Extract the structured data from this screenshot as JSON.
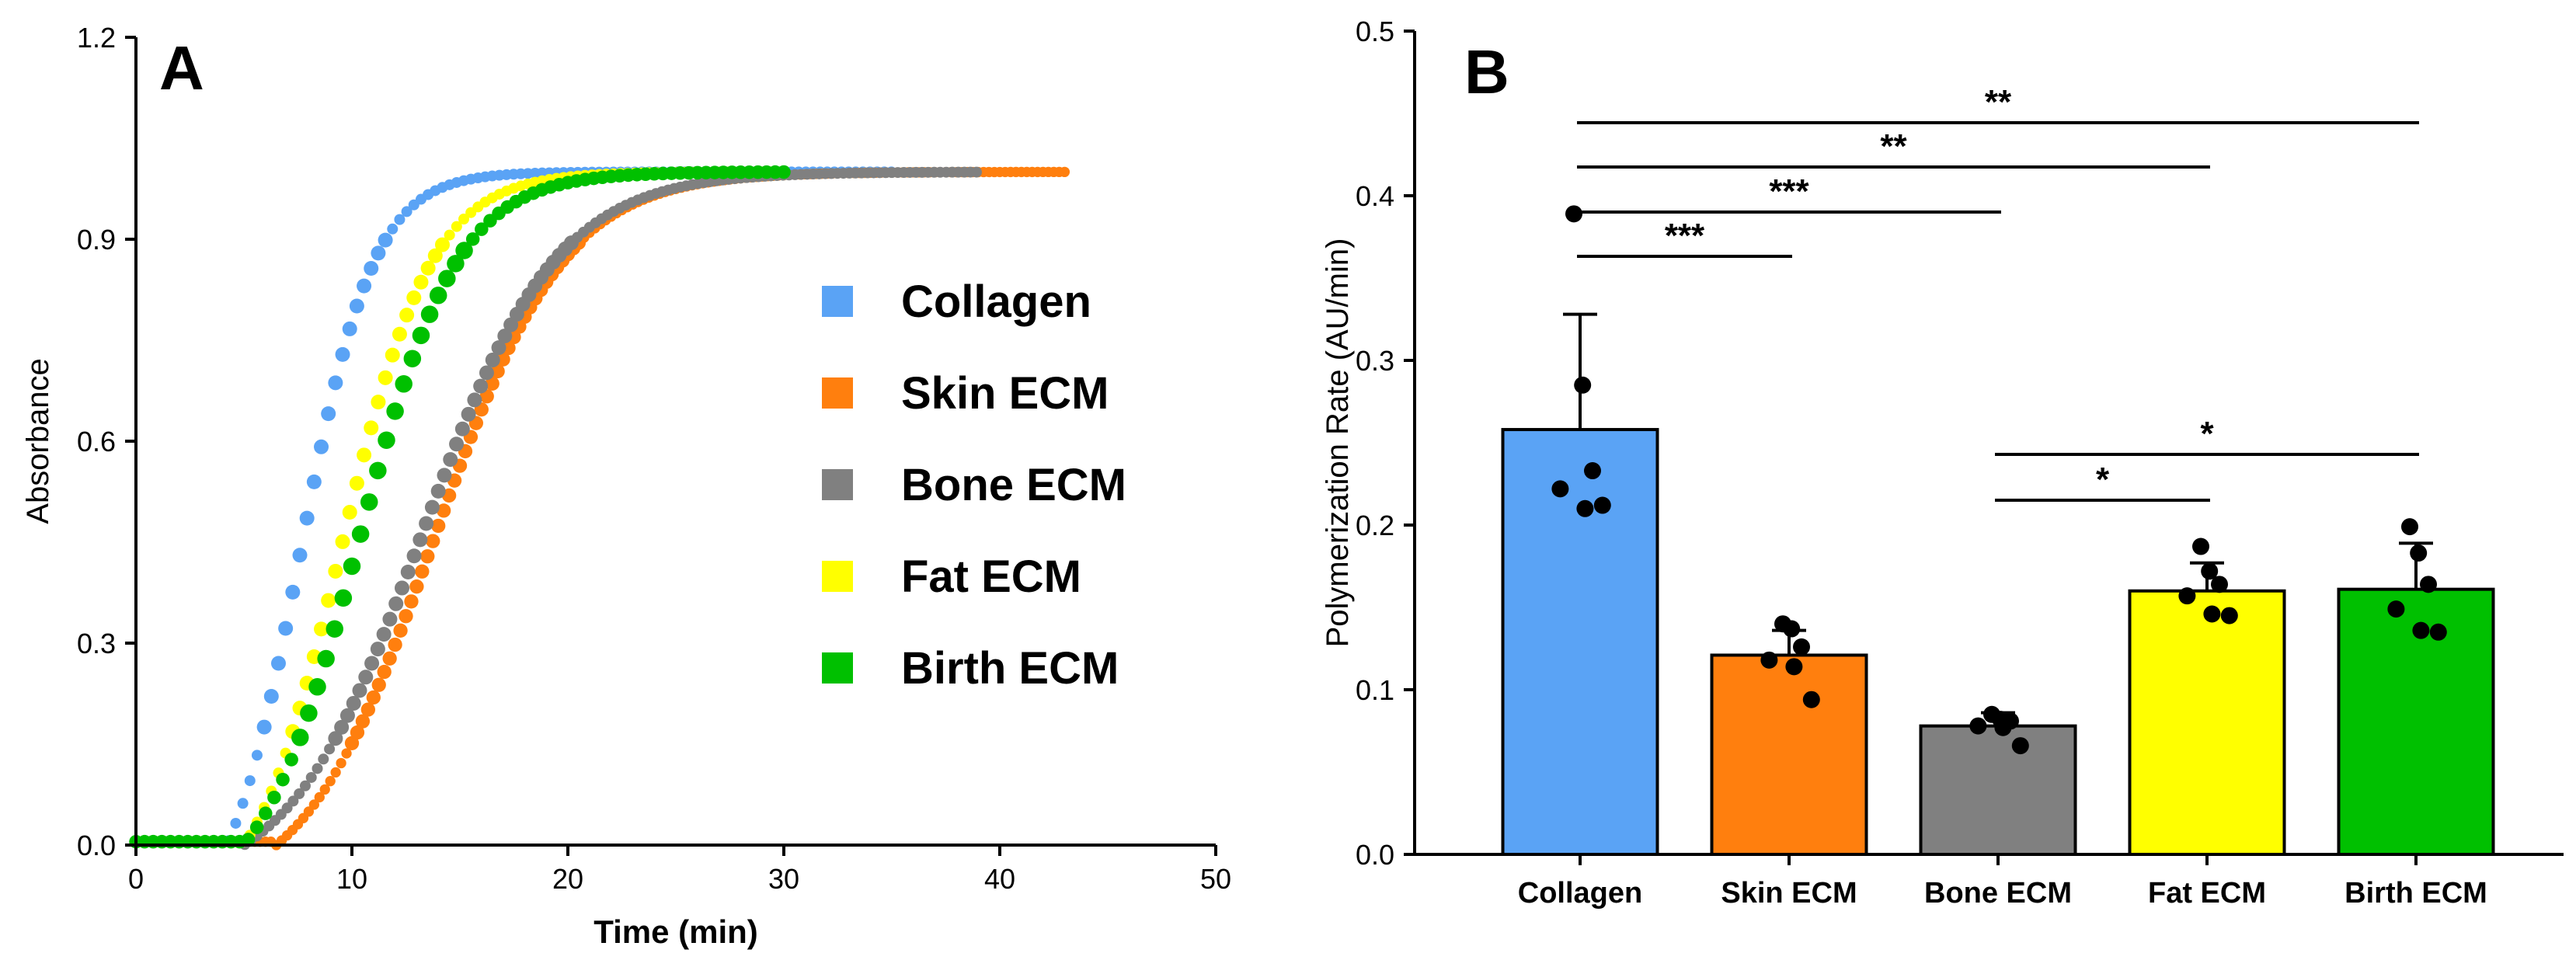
{
  "colors": {
    "collagen": "#5aa3f5",
    "skin": "#ff7f0e",
    "bone": "#808080",
    "fat": "#ffff00",
    "birth": "#00c000"
  },
  "chart_data": [
    {
      "panel": "A",
      "type": "scatter",
      "xlabel": "Time (min)",
      "ylabel": "Absorbance",
      "xlim": [
        0,
        50
      ],
      "ylim": [
        0,
        1.2
      ],
      "xticks": [
        "0",
        "10",
        "20",
        "30",
        "40",
        "50"
      ],
      "yticks": [
        "0.0",
        "0.3",
        "0.6",
        "0.9",
        "1.2"
      ],
      "series": [
        {
          "name": "Collagen",
          "color_key": "collagen",
          "onset": 4.2,
          "midpoint": 7.6,
          "width": 1.7,
          "end": 35,
          "step": 0.33,
          "dot": 1
        },
        {
          "name": "Skin ECM",
          "color_key": "skin",
          "onset": 6.5,
          "midpoint": 13.8,
          "width": 3.0,
          "end": 43,
          "step": 0.25,
          "dot": 0.95
        },
        {
          "name": "Bone ECM",
          "color_key": "bone",
          "onset": 5.0,
          "midpoint": 13.3,
          "width": 3.1,
          "end": 39,
          "step": 0.28,
          "dot": 1
        },
        {
          "name": "Fat ECM",
          "color_key": "fat",
          "onset": 5.0,
          "midpoint": 9.5,
          "width": 2.1,
          "end": 30,
          "step": 0.33,
          "dot": 1
        },
        {
          "name": "Birth ECM",
          "color_key": "birth",
          "onset": 5.0,
          "midpoint": 10.3,
          "width": 2.3,
          "end": 30,
          "step": 0.4,
          "dot": 1.25
        }
      ],
      "legend": [
        "Collagen",
        "Skin ECM",
        "Bone ECM",
        "Fat ECM",
        "Birth ECM"
      ]
    },
    {
      "panel": "B",
      "type": "bar",
      "xlabel": "",
      "ylabel": "Polymerization Rate (AU/min)",
      "ylim": [
        0,
        0.5
      ],
      "yticks": [
        "0.0",
        "0.1",
        "0.2",
        "0.3",
        "0.4",
        "0.5"
      ],
      "categories": [
        "Collagen",
        "Skin ECM",
        "Bone ECM",
        "Fat ECM",
        "Birth ECM"
      ],
      "color_keys": [
        "collagen",
        "skin",
        "bone",
        "fat",
        "birth"
      ],
      "values": [
        0.258,
        0.121,
        0.078,
        0.16,
        0.161
      ],
      "error": [
        0.07,
        0.015,
        0.008,
        0.017,
        0.028
      ],
      "points": [
        [
          0.389,
          0.285,
          0.233,
          0.222,
          0.21,
          0.212
        ],
        [
          0.14,
          0.137,
          0.126,
          0.118,
          0.114,
          0.094
        ],
        [
          0.085,
          0.082,
          0.081,
          0.078,
          0.077,
          0.066
        ],
        [
          0.187,
          0.172,
          0.164,
          0.157,
          0.146,
          0.145
        ],
        [
          0.199,
          0.183,
          0.164,
          0.149,
          0.136,
          0.135
        ]
      ],
      "significance": [
        {
          "from": 0,
          "to": 4,
          "label": "**"
        },
        {
          "from": 0,
          "to": 3,
          "label": "**"
        },
        {
          "from": 0,
          "to": 2,
          "label": "***"
        },
        {
          "from": 0,
          "to": 1,
          "label": "***"
        },
        {
          "from": 2,
          "to": 4,
          "label": "*"
        },
        {
          "from": 2,
          "to": 3,
          "label": "*"
        }
      ]
    }
  ]
}
